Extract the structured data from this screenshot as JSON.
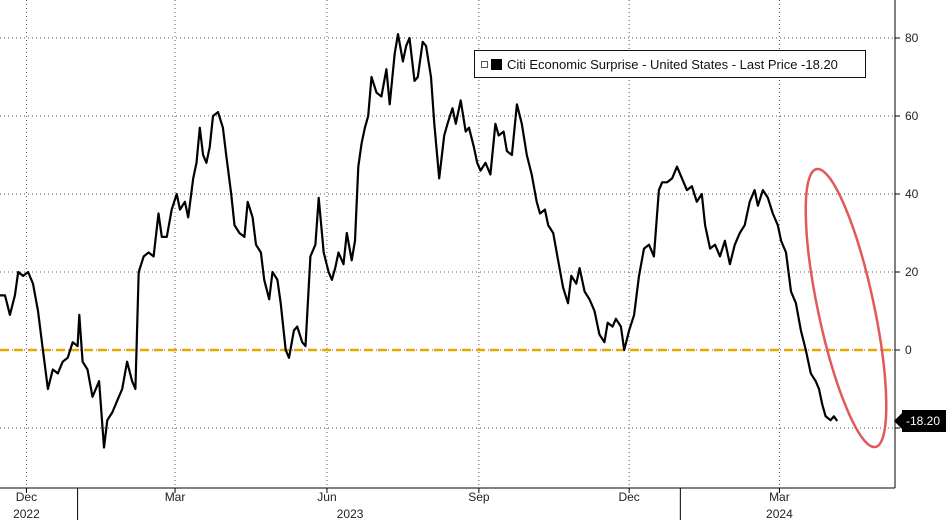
{
  "chart_data": {
    "type": "line",
    "title": "",
    "xlabel": "",
    "ylabel": "",
    "ylim": [
      -30,
      90
    ],
    "y_ticks": [
      -20,
      0,
      20,
      40,
      60,
      80
    ],
    "xlim": [
      "2022-11-15",
      "2024-05-10"
    ],
    "x_ticks": [
      {
        "date": "2022-12-01",
        "label": "Dec"
      },
      {
        "date": "2023-03-01",
        "label": "Mar"
      },
      {
        "date": "2023-06-01",
        "label": "Jun"
      },
      {
        "date": "2023-09-01",
        "label": "Sep"
      },
      {
        "date": "2023-12-01",
        "label": "Dec"
      },
      {
        "date": "2024-03-01",
        "label": "Mar"
      }
    ],
    "year_labels": [
      {
        "date": "2022-12-01",
        "label": "2022"
      },
      {
        "date": "2023-06-15",
        "label": "2023"
      },
      {
        "date": "2024-03-01",
        "label": "2024"
      }
    ],
    "year_boundaries": [
      "2023-01-01",
      "2024-01-01"
    ],
    "grid": true,
    "reference_line": {
      "y": 0,
      "color": "#e8a800"
    },
    "legend": {
      "position": "top-right",
      "text": "Citi Economic Surprise - United States - Last Price -18.20"
    },
    "last_value_label": "-18.20",
    "series": [
      {
        "color": "#000000",
        "points": [
          [
            "2022-11-15",
            14
          ],
          [
            "2022-11-18",
            14
          ],
          [
            "2022-11-21",
            9
          ],
          [
            "2022-11-24",
            14
          ],
          [
            "2022-11-26",
            20
          ],
          [
            "2022-11-29",
            19
          ],
          [
            "2022-12-02",
            20
          ],
          [
            "2022-12-05",
            17
          ],
          [
            "2022-12-08",
            10
          ],
          [
            "2022-12-11",
            0
          ],
          [
            "2022-12-14",
            -10
          ],
          [
            "2022-12-17",
            -5
          ],
          [
            "2022-12-20",
            -6
          ],
          [
            "2022-12-23",
            -3
          ],
          [
            "2022-12-26",
            -2
          ],
          [
            "2022-12-29",
            2
          ],
          [
            "2023-01-01",
            1
          ],
          [
            "2023-01-02",
            9
          ],
          [
            "2023-01-04",
            -3
          ],
          [
            "2023-01-07",
            -5
          ],
          [
            "2023-01-10",
            -12
          ],
          [
            "2023-01-14",
            -8
          ],
          [
            "2023-01-17",
            -25
          ],
          [
            "2023-01-19",
            -18
          ],
          [
            "2023-01-22",
            -16
          ],
          [
            "2023-01-25",
            -13
          ],
          [
            "2023-01-28",
            -10
          ],
          [
            "2023-01-31",
            -3
          ],
          [
            "2023-02-03",
            -8
          ],
          [
            "2023-02-05",
            -10
          ],
          [
            "2023-02-07",
            20
          ],
          [
            "2023-02-10",
            24
          ],
          [
            "2023-02-13",
            25
          ],
          [
            "2023-02-16",
            24
          ],
          [
            "2023-02-19",
            35
          ],
          [
            "2023-02-21",
            29
          ],
          [
            "2023-02-24",
            29
          ],
          [
            "2023-02-27",
            36
          ],
          [
            "2023-03-02",
            40
          ],
          [
            "2023-03-04",
            36
          ],
          [
            "2023-03-07",
            38
          ],
          [
            "2023-03-09",
            34
          ],
          [
            "2023-03-12",
            44
          ],
          [
            "2023-03-14",
            48
          ],
          [
            "2023-03-16",
            57
          ],
          [
            "2023-03-18",
            50
          ],
          [
            "2023-03-20",
            48
          ],
          [
            "2023-03-22",
            52
          ],
          [
            "2023-03-24",
            60
          ],
          [
            "2023-03-27",
            61
          ],
          [
            "2023-03-30",
            57
          ],
          [
            "2023-04-01",
            50
          ],
          [
            "2023-04-04",
            40
          ],
          [
            "2023-04-06",
            32
          ],
          [
            "2023-04-09",
            30
          ],
          [
            "2023-04-12",
            29
          ],
          [
            "2023-04-14",
            38
          ],
          [
            "2023-04-17",
            34
          ],
          [
            "2023-04-19",
            27
          ],
          [
            "2023-04-22",
            25
          ],
          [
            "2023-04-24",
            18
          ],
          [
            "2023-04-27",
            13
          ],
          [
            "2023-04-29",
            20
          ],
          [
            "2023-05-02",
            18
          ],
          [
            "2023-05-04",
            12
          ],
          [
            "2023-05-07",
            0
          ],
          [
            "2023-05-09",
            -2
          ],
          [
            "2023-05-12",
            5
          ],
          [
            "2023-05-14",
            6
          ],
          [
            "2023-05-17",
            2
          ],
          [
            "2023-05-19",
            1
          ],
          [
            "2023-05-22",
            24
          ],
          [
            "2023-05-25",
            27
          ],
          [
            "2023-05-27",
            39
          ],
          [
            "2023-05-30",
            25
          ],
          [
            "2023-06-02",
            20
          ],
          [
            "2023-06-04",
            18
          ],
          [
            "2023-06-06",
            21
          ],
          [
            "2023-06-08",
            25
          ],
          [
            "2023-06-11",
            22
          ],
          [
            "2023-06-13",
            30
          ],
          [
            "2023-06-16",
            23
          ],
          [
            "2023-06-18",
            28
          ],
          [
            "2023-06-20",
            47
          ],
          [
            "2023-06-22",
            53
          ],
          [
            "2023-06-24",
            57
          ],
          [
            "2023-06-26",
            60
          ],
          [
            "2023-06-28",
            70
          ],
          [
            "2023-07-01",
            66
          ],
          [
            "2023-07-04",
            65
          ],
          [
            "2023-07-07",
            72
          ],
          [
            "2023-07-09",
            63
          ],
          [
            "2023-07-12",
            76
          ],
          [
            "2023-07-14",
            81
          ],
          [
            "2023-07-17",
            74
          ],
          [
            "2023-07-19",
            78
          ],
          [
            "2023-07-21",
            80
          ],
          [
            "2023-07-24",
            69
          ],
          [
            "2023-07-26",
            70
          ],
          [
            "2023-07-29",
            79
          ],
          [
            "2023-07-31",
            78
          ],
          [
            "2023-08-03",
            70
          ],
          [
            "2023-08-05",
            58
          ],
          [
            "2023-08-08",
            44
          ],
          [
            "2023-08-11",
            55
          ],
          [
            "2023-08-13",
            58
          ],
          [
            "2023-08-16",
            62
          ],
          [
            "2023-08-18",
            58
          ],
          [
            "2023-08-21",
            64
          ],
          [
            "2023-08-24",
            56
          ],
          [
            "2023-08-26",
            57
          ],
          [
            "2023-08-29",
            52
          ],
          [
            "2023-08-31",
            48
          ],
          [
            "2023-09-02",
            46
          ],
          [
            "2023-09-05",
            48
          ],
          [
            "2023-09-08",
            45
          ],
          [
            "2023-09-11",
            58
          ],
          [
            "2023-09-13",
            55
          ],
          [
            "2023-09-16",
            56
          ],
          [
            "2023-09-18",
            51
          ],
          [
            "2023-09-21",
            50
          ],
          [
            "2023-09-24",
            63
          ],
          [
            "2023-09-27",
            58
          ],
          [
            "2023-09-30",
            50
          ],
          [
            "2023-10-03",
            45
          ],
          [
            "2023-10-06",
            38
          ],
          [
            "2023-10-08",
            35
          ],
          [
            "2023-10-11",
            36
          ],
          [
            "2023-10-13",
            32
          ],
          [
            "2023-10-16",
            30
          ],
          [
            "2023-10-19",
            23
          ],
          [
            "2023-10-22",
            16
          ],
          [
            "2023-10-25",
            12
          ],
          [
            "2023-10-27",
            19
          ],
          [
            "2023-10-30",
            17
          ],
          [
            "2023-11-01",
            21
          ],
          [
            "2023-11-04",
            15
          ],
          [
            "2023-11-07",
            13
          ],
          [
            "2023-11-10",
            10
          ],
          [
            "2023-11-13",
            4
          ],
          [
            "2023-11-16",
            2
          ],
          [
            "2023-11-18",
            7
          ],
          [
            "2023-11-21",
            6
          ],
          [
            "2023-11-23",
            8
          ],
          [
            "2023-11-26",
            6
          ],
          [
            "2023-11-28",
            0
          ],
          [
            "2023-12-01",
            5
          ],
          [
            "2023-12-04",
            9
          ],
          [
            "2023-12-07",
            19
          ],
          [
            "2023-12-10",
            26
          ],
          [
            "2023-12-13",
            27
          ],
          [
            "2023-12-16",
            24
          ],
          [
            "2023-12-19",
            41
          ],
          [
            "2023-12-21",
            43
          ],
          [
            "2023-12-24",
            43
          ],
          [
            "2023-12-27",
            44
          ],
          [
            "2023-12-30",
            47
          ],
          [
            "2024-01-02",
            44
          ],
          [
            "2024-01-05",
            41
          ],
          [
            "2024-01-08",
            42
          ],
          [
            "2024-01-11",
            38
          ],
          [
            "2024-01-14",
            40
          ],
          [
            "2024-01-16",
            32
          ],
          [
            "2024-01-19",
            26
          ],
          [
            "2024-01-22",
            27
          ],
          [
            "2024-01-25",
            24
          ],
          [
            "2024-01-28",
            28
          ],
          [
            "2024-01-31",
            22
          ],
          [
            "2024-02-03",
            27
          ],
          [
            "2024-02-06",
            30
          ],
          [
            "2024-02-09",
            32
          ],
          [
            "2024-02-12",
            38
          ],
          [
            "2024-02-15",
            41
          ],
          [
            "2024-02-17",
            37
          ],
          [
            "2024-02-20",
            41
          ],
          [
            "2024-02-23",
            39
          ],
          [
            "2024-02-26",
            35
          ],
          [
            "2024-02-29",
            32
          ],
          [
            "2024-03-02",
            28
          ],
          [
            "2024-03-05",
            25
          ],
          [
            "2024-03-08",
            15
          ],
          [
            "2024-03-11",
            12
          ],
          [
            "2024-03-14",
            5
          ],
          [
            "2024-03-17",
            0
          ],
          [
            "2024-03-20",
            -6
          ],
          [
            "2024-03-23",
            -8
          ],
          [
            "2024-03-25",
            -10
          ],
          [
            "2024-03-27",
            -14
          ],
          [
            "2024-03-29",
            -17
          ],
          [
            "2024-04-01",
            -18
          ],
          [
            "2024-04-03",
            -17
          ],
          [
            "2024-04-05",
            -18.2
          ]
        ]
      }
    ]
  }
}
